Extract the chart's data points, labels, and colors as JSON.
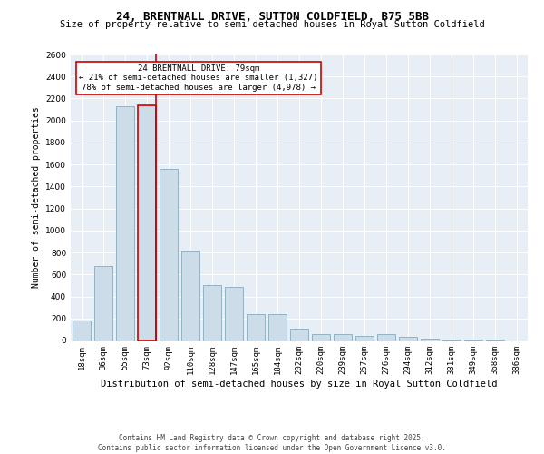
{
  "title": "24, BRENTNALL DRIVE, SUTTON COLDFIELD, B75 5BB",
  "subtitle": "Size of property relative to semi-detached houses in Royal Sutton Coldfield",
  "xlabel": "Distribution of semi-detached houses by size in Royal Sutton Coldfield",
  "ylabel": "Number of semi-detached properties",
  "categories": [
    "18sqm",
    "36sqm",
    "55sqm",
    "73sqm",
    "92sqm",
    "110sqm",
    "128sqm",
    "147sqm",
    "165sqm",
    "184sqm",
    "202sqm",
    "220sqm",
    "239sqm",
    "257sqm",
    "276sqm",
    "294sqm",
    "312sqm",
    "331sqm",
    "349sqm",
    "368sqm",
    "386sqm"
  ],
  "values": [
    180,
    680,
    2130,
    2140,
    1560,
    820,
    500,
    490,
    240,
    240,
    105,
    55,
    60,
    40,
    55,
    35,
    15,
    10,
    5,
    5,
    3
  ],
  "bar_color": "#ccdce8",
  "bar_edge_color": "#88aabb",
  "highlight_bar_index": 3,
  "vline_color": "#cc0000",
  "property_label": "24 BRENTNALL DRIVE: 79sqm",
  "annotation_smaller": "← 21% of semi-detached houses are smaller (1,327)",
  "annotation_larger": "78% of semi-detached houses are larger (4,978) →",
  "ylim": [
    0,
    2600
  ],
  "yticks": [
    0,
    200,
    400,
    600,
    800,
    1000,
    1200,
    1400,
    1600,
    1800,
    2000,
    2200,
    2400,
    2600
  ],
  "bg_color": "#e8eef5",
  "footnote1": "Contains HM Land Registry data © Crown copyright and database right 2025.",
  "footnote2": "Contains public sector information licensed under the Open Government Licence v3.0.",
  "title_fontsize": 9,
  "subtitle_fontsize": 7.5,
  "ylabel_fontsize": 7,
  "xlabel_fontsize": 7.5,
  "tick_fontsize": 6.5,
  "annotation_fontsize": 6.5,
  "footnote_fontsize": 5.5
}
